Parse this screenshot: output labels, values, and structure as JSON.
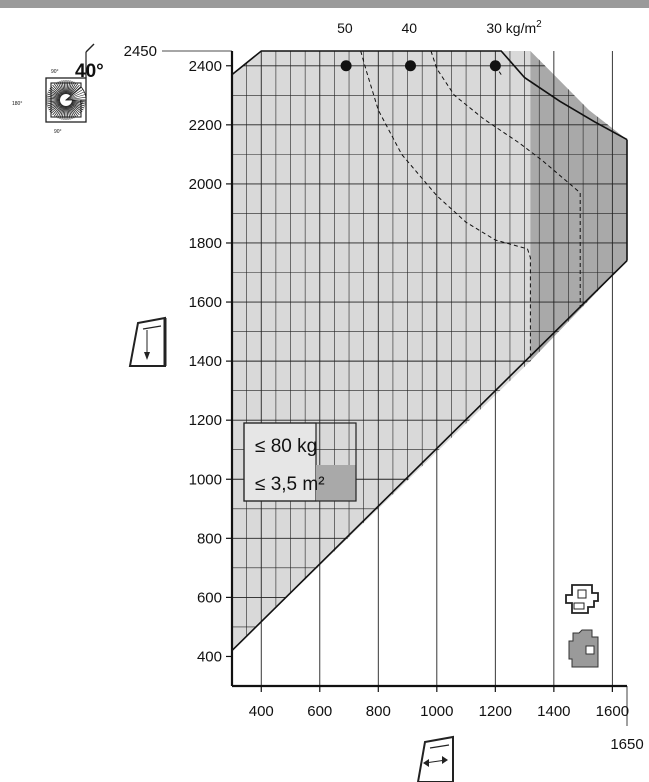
{
  "chart_data": {
    "type": "area",
    "title": "",
    "xlabel": "",
    "ylabel": "",
    "xlim": [
      300,
      1650
    ],
    "ylim": [
      300,
      2450
    ],
    "x_ticks": [
      400,
      600,
      800,
      1000,
      1200,
      1400,
      1600
    ],
    "x_extra_tick": 1650,
    "y_ticks": [
      400,
      600,
      800,
      1000,
      1200,
      1400,
      1600,
      1800,
      2000,
      2200,
      2400
    ],
    "y_extra_tick": 2450,
    "grid": true,
    "regions": [
      {
        "name": "light-region",
        "fill": "#d9d9d9",
        "points": [
          [
            300,
            2370
          ],
          [
            400,
            2450
          ],
          [
            1320,
            2450
          ],
          [
            1320,
            1400
          ],
          [
            800,
            900
          ],
          [
            300,
            420
          ]
        ]
      },
      {
        "name": "dark-region",
        "fill": "#a9a9a9",
        "points": [
          [
            1320,
            2450
          ],
          [
            1420,
            2350
          ],
          [
            1520,
            2250
          ],
          [
            1650,
            2150
          ],
          [
            1650,
            1740
          ],
          [
            1320,
            1400
          ]
        ]
      }
    ],
    "boundary": {
      "upper": [
        [
          300,
          2370
        ],
        [
          400,
          2450
        ],
        [
          1220,
          2450
        ],
        [
          1300,
          2360
        ],
        [
          1420,
          2280
        ],
        [
          1540,
          2210
        ],
        [
          1650,
          2150
        ]
      ],
      "lower": [
        [
          300,
          420
        ],
        [
          1650,
          1740
        ]
      ],
      "right": [
        [
          1650,
          2150
        ],
        [
          1650,
          1740
        ]
      ]
    },
    "weight_lines": [
      {
        "label": "50",
        "marker": [
          690,
          2400
        ],
        "points": [
          [
            740,
            2450
          ],
          [
            760,
            2380
          ],
          [
            800,
            2250
          ],
          [
            880,
            2100
          ],
          [
            1000,
            1960
          ],
          [
            1100,
            1870
          ],
          [
            1200,
            1810
          ],
          [
            1310,
            1780
          ],
          [
            1320,
            1750
          ],
          [
            1320,
            1400
          ]
        ]
      },
      {
        "label": "40",
        "marker": [
          910,
          2400
        ],
        "points": [
          [
            980,
            2450
          ],
          [
            1000,
            2390
          ],
          [
            1060,
            2300
          ],
          [
            1160,
            2220
          ],
          [
            1280,
            2140
          ],
          [
            1360,
            2080
          ],
          [
            1490,
            1970
          ],
          [
            1490,
            1580
          ]
        ]
      },
      {
        "label": "30 kg/m²",
        "marker": [
          1200,
          2400
        ],
        "points": [
          [
            1200,
            2400
          ],
          [
            1220,
            2370
          ]
        ]
      }
    ],
    "annotation": {
      "line1": "≤ 80 kg",
      "line2": "≤ 3,5 m²"
    }
  },
  "icons": {
    "opening_angle": "40°",
    "angle_ticks": [
      "90°",
      "180°",
      "0°",
      "90°"
    ],
    "side_icon": "window-height-icon",
    "bottom_icon": "window-width-icon",
    "profile_icons": [
      "window-profile-icon",
      "frame-profile-icon"
    ]
  },
  "colors": {
    "light_fill": "#d9d9d9",
    "dark_fill": "#a9a9a9",
    "grid": "#222222",
    "marker": "#111111"
  }
}
